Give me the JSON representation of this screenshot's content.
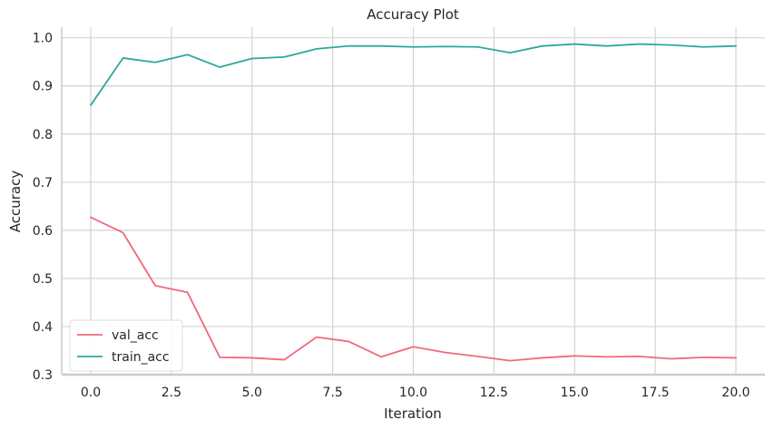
{
  "chart_data": {
    "type": "line",
    "title": "Accuracy Plot",
    "xlabel": "Iteration",
    "ylabel": "Accuracy",
    "xlim": [
      -0.9,
      20.9
    ],
    "ylim": [
      0.3,
      1.022
    ],
    "xticks": [
      0,
      2.5,
      5,
      7.5,
      10,
      12.5,
      15,
      17.5,
      20
    ],
    "xtick_labels": [
      "0.0",
      "2.5",
      "5.0",
      "7.5",
      "10.0",
      "12.5",
      "15.0",
      "17.5",
      "20.0"
    ],
    "yticks": [
      0.3,
      0.4,
      0.5,
      0.6,
      0.7,
      0.8,
      0.9,
      1.0
    ],
    "ytick_labels": [
      "0.3",
      "0.4",
      "0.5",
      "0.6",
      "0.7",
      "0.8",
      "0.9",
      "1.0"
    ],
    "grid": true,
    "legend_position": "lower-left",
    "x": [
      0,
      1,
      2,
      3,
      4,
      5,
      6,
      7,
      8,
      9,
      10,
      11,
      12,
      13,
      14,
      15,
      16,
      17,
      18,
      19,
      20
    ],
    "series": [
      {
        "name": "val_acc",
        "color": "#f0697e",
        "values": [
          0.627,
          0.595,
          0.485,
          0.471,
          0.336,
          0.335,
          0.331,
          0.378,
          0.369,
          0.337,
          0.358,
          0.346,
          0.338,
          0.329,
          0.335,
          0.339,
          0.337,
          0.338,
          0.333,
          0.336,
          0.335
        ]
      },
      {
        "name": "train_acc",
        "color": "#2fa89c",
        "values": [
          0.86,
          0.958,
          0.949,
          0.965,
          0.939,
          0.957,
          0.96,
          0.977,
          0.983,
          0.983,
          0.981,
          0.982,
          0.981,
          0.969,
          0.983,
          0.987,
          0.983,
          0.987,
          0.985,
          0.981,
          0.983
        ]
      }
    ]
  }
}
